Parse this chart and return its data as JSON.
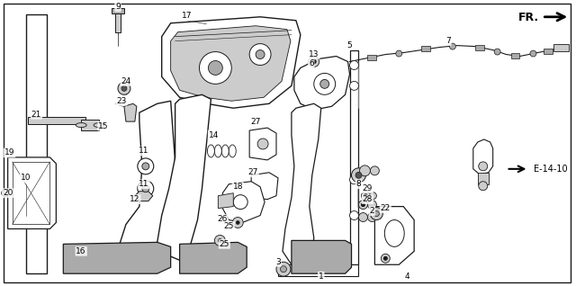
{
  "background_color": "#ffffff",
  "border_color": "#000000",
  "figsize": [
    6.4,
    3.18
  ],
  "dpi": 100,
  "fr_text": "FR.",
  "e1410_text": "E-14-10",
  "line_color": "#1a1a1a",
  "gray_fill": "#888888",
  "light_gray": "#cccccc",
  "mid_gray": "#aaaaaa",
  "dark_gray": "#555555"
}
